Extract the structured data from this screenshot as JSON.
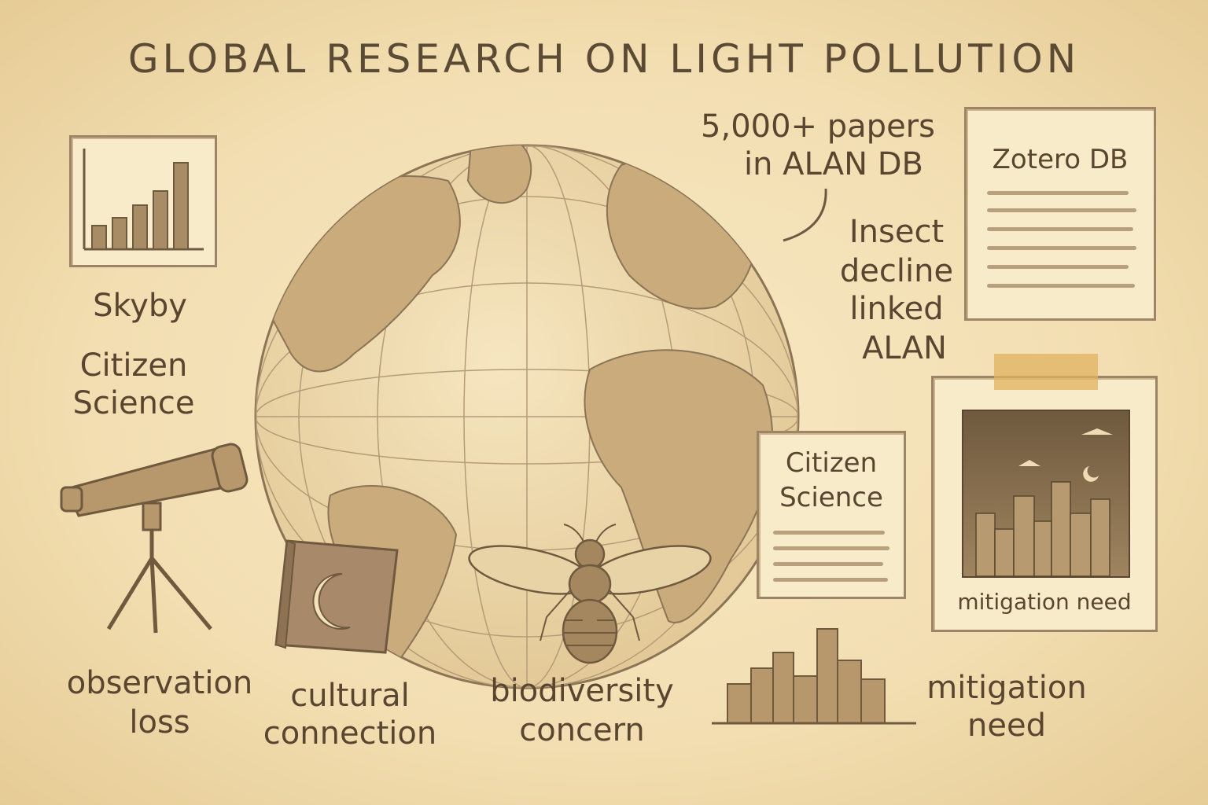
{
  "title": "GLOBAL RESEARCH ON LIGHT POLLUTION",
  "annotations": {
    "papers_line1": "5,000+ papers",
    "papers_line2": "in ALAN DB",
    "insect_line1": "Insect",
    "insect_line2": "decline",
    "insect_line3": "linked",
    "insect_line4": "ALAN"
  },
  "cards": {
    "zotero_title": "Zotero DB",
    "citizen_line1": "Citizen",
    "citizen_line2": "Science",
    "mitigation_caption": "mitigation need"
  },
  "left_labels": {
    "skyby": "Skyby",
    "citizen_line1": "Citizen",
    "citizen_line2": "Science"
  },
  "bottom_labels": {
    "observation_line1": "observation",
    "observation_line2": "loss",
    "cultural_line1": "cultural",
    "cultural_line2": "connection",
    "biodiversity_line1": "biodiversity",
    "biodiversity_line2": "concern",
    "mitigation_line1": "mitigation",
    "mitigation_line2": "need"
  },
  "icons": [
    "bar-chart-icon",
    "globe-icon",
    "telescope-icon",
    "book-moon-icon",
    "bee-icon",
    "city-skyline-icon",
    "document-icon",
    "photo-icon"
  ],
  "colors": {
    "paper": "#f4e2b8",
    "ink": "#5a4630",
    "sepia": "#b9a07d",
    "tape": "#e2b15f"
  }
}
